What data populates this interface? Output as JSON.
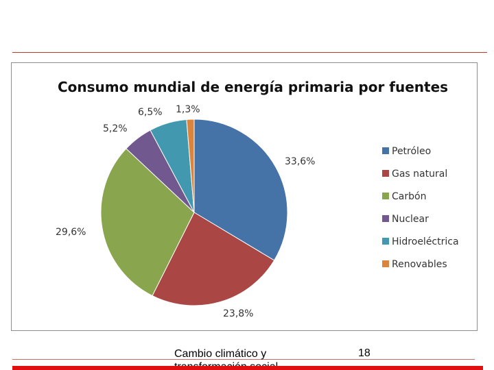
{
  "chart_data": {
    "type": "pie",
    "title": "Consumo mundial de energía primaria por fuentes",
    "categories": [
      "Petróleo",
      "Gas natural",
      "Carbón",
      "Nuclear",
      "Hidroeléctrica",
      "Renovables"
    ],
    "values": [
      33.6,
      23.8,
      29.6,
      5.2,
      6.5,
      1.3
    ],
    "data_labels": [
      "33,6%",
      "23,8%",
      "29,6%",
      "5,2%",
      "6,5%",
      "1,3%"
    ],
    "colors": [
      "#4572a7",
      "#aa4643",
      "#89a54e",
      "#71588f",
      "#4198af",
      "#db843d"
    ],
    "legend_position": "right"
  },
  "footer": {
    "text": "Cambio climático y transformación social",
    "page": "18"
  }
}
